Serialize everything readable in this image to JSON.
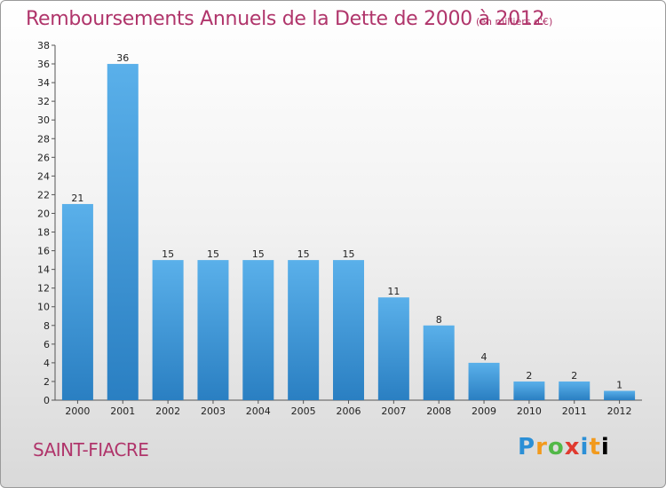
{
  "header": {
    "title": "Remboursements Annuels de la Dette de 2000 à 2012",
    "unit": "(en milliers d'€)"
  },
  "footer": {
    "city": "SAINT-FIACRE",
    "logo": [
      "P",
      "r",
      "o",
      "x",
      "i",
      "t",
      "i"
    ]
  },
  "colors": {
    "bar_top": "#5ab0ea",
    "bar_bottom": "#2a7fc2",
    "accent": "#b0356b"
  },
  "chart_data": {
    "type": "bar",
    "title": "Remboursements Annuels de la Dette de 2000 à 2012",
    "xlabel": "",
    "ylabel": "",
    "categories": [
      "2000",
      "2001",
      "2002",
      "2003",
      "2004",
      "2005",
      "2006",
      "2007",
      "2008",
      "2009",
      "2010",
      "2011",
      "2012"
    ],
    "values": [
      21,
      36,
      15,
      15,
      15,
      15,
      15,
      11,
      8,
      4,
      2,
      2,
      1
    ],
    "ylim": [
      0,
      38
    ],
    "yticks": [
      0,
      2,
      4,
      6,
      8,
      10,
      12,
      14,
      16,
      18,
      20,
      22,
      24,
      26,
      28,
      30,
      32,
      34,
      36,
      38
    ],
    "grid": false
  }
}
